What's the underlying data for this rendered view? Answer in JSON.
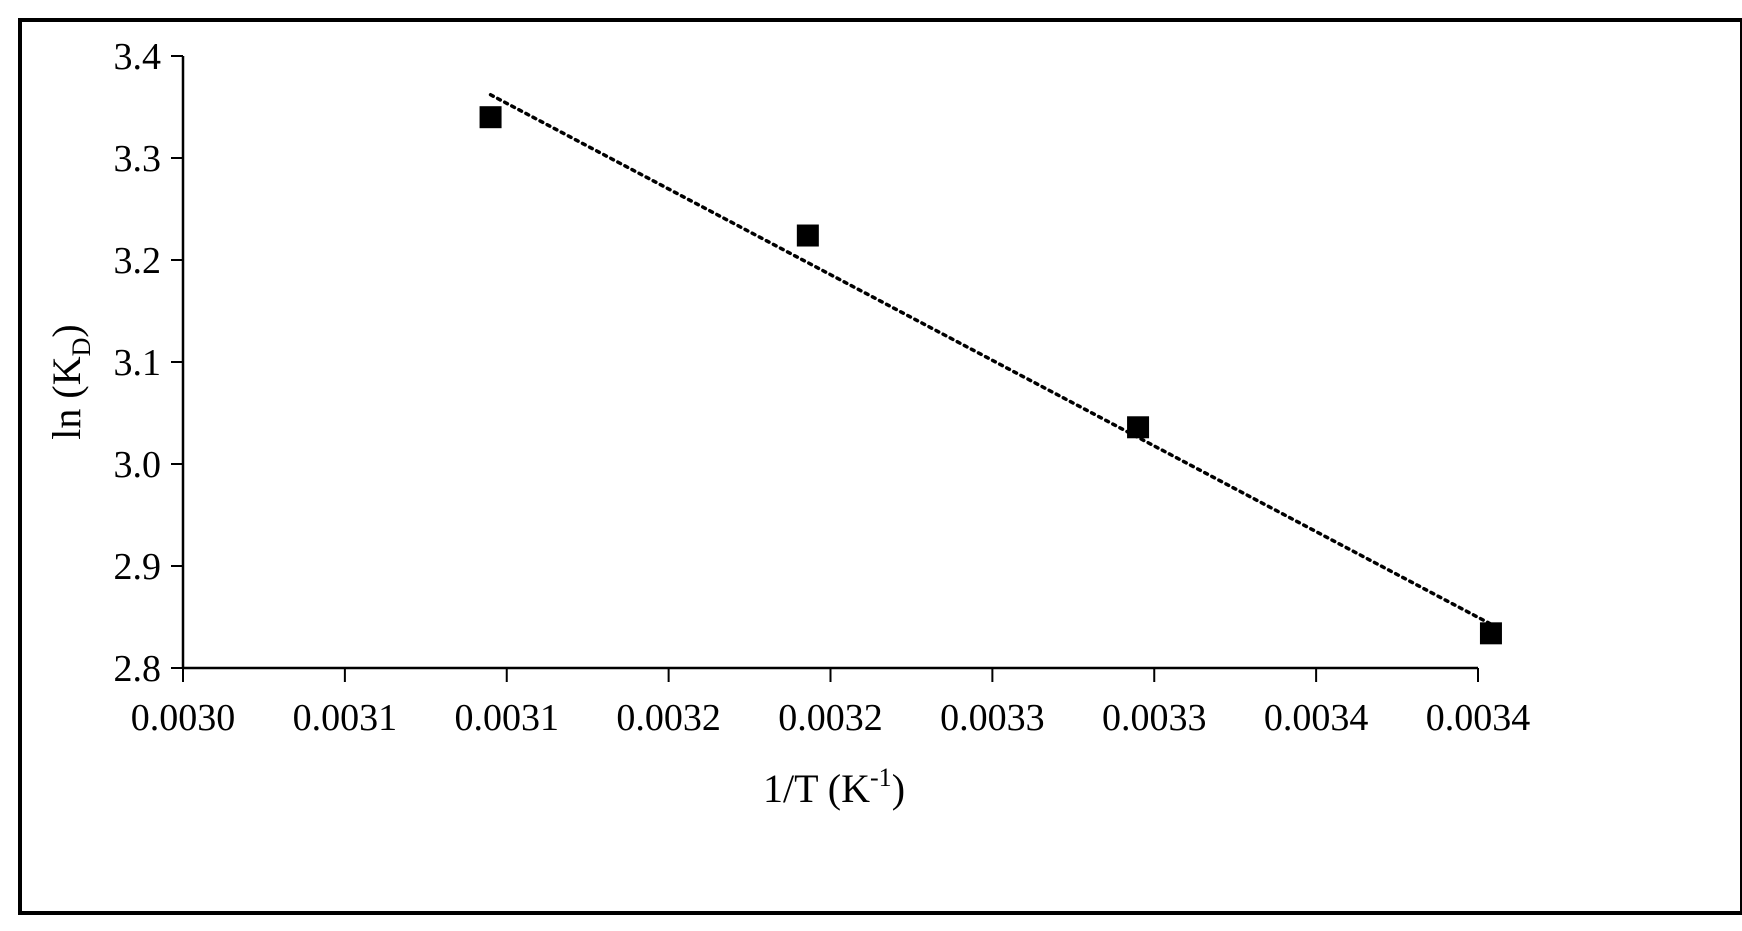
{
  "chart_data": {
    "type": "scatter",
    "title": "",
    "xlabel": {
      "base": "1/T (K",
      "sup": "-1",
      "tail": ")"
    },
    "ylabel": {
      "base": "ln (K",
      "sub": "D",
      "tail": ")"
    },
    "xlim": [
      0.003,
      0.0034
    ],
    "ylim": [
      2.8,
      3.4
    ],
    "x_ticks": [
      0.003,
      0.00305,
      0.0031,
      0.00315,
      0.0032,
      0.00325,
      0.0033
    ],
    "x_tick_labels": [
      "0.0030",
      "0.0031",
      "0.0031",
      "0.0032",
      "0.0032",
      "0.0033",
      "0.0033",
      "0.0034",
      "0.0034"
    ],
    "x_tick_values": [
      0.003,
      0.00305,
      0.0031,
      0.00315,
      0.0032,
      0.00325,
      0.0033,
      0.00335,
      0.0034
    ],
    "y_ticks": [
      2.8,
      2.9,
      3.0,
      3.1,
      3.2,
      3.3,
      3.4
    ],
    "y_tick_labels": [
      "2.8",
      "2.9",
      "3.0",
      "3.1",
      "3.2",
      "3.3",
      "3.4"
    ],
    "grid": false,
    "legend": "none",
    "series": [
      {
        "marker": "square",
        "color": "#000000",
        "points": [
          {
            "x": 0.003095,
            "y": 3.34
          },
          {
            "x": 0.003193,
            "y": 3.224
          },
          {
            "x": 0.003295,
            "y": 3.036
          },
          {
            "x": 0.003404,
            "y": 2.834
          }
        ]
      }
    ],
    "trendline": {
      "style": "dotted",
      "color": "#000000",
      "x_range": [
        0.003095,
        0.003404
      ],
      "y_at_range": [
        3.362,
        2.843
      ]
    }
  }
}
